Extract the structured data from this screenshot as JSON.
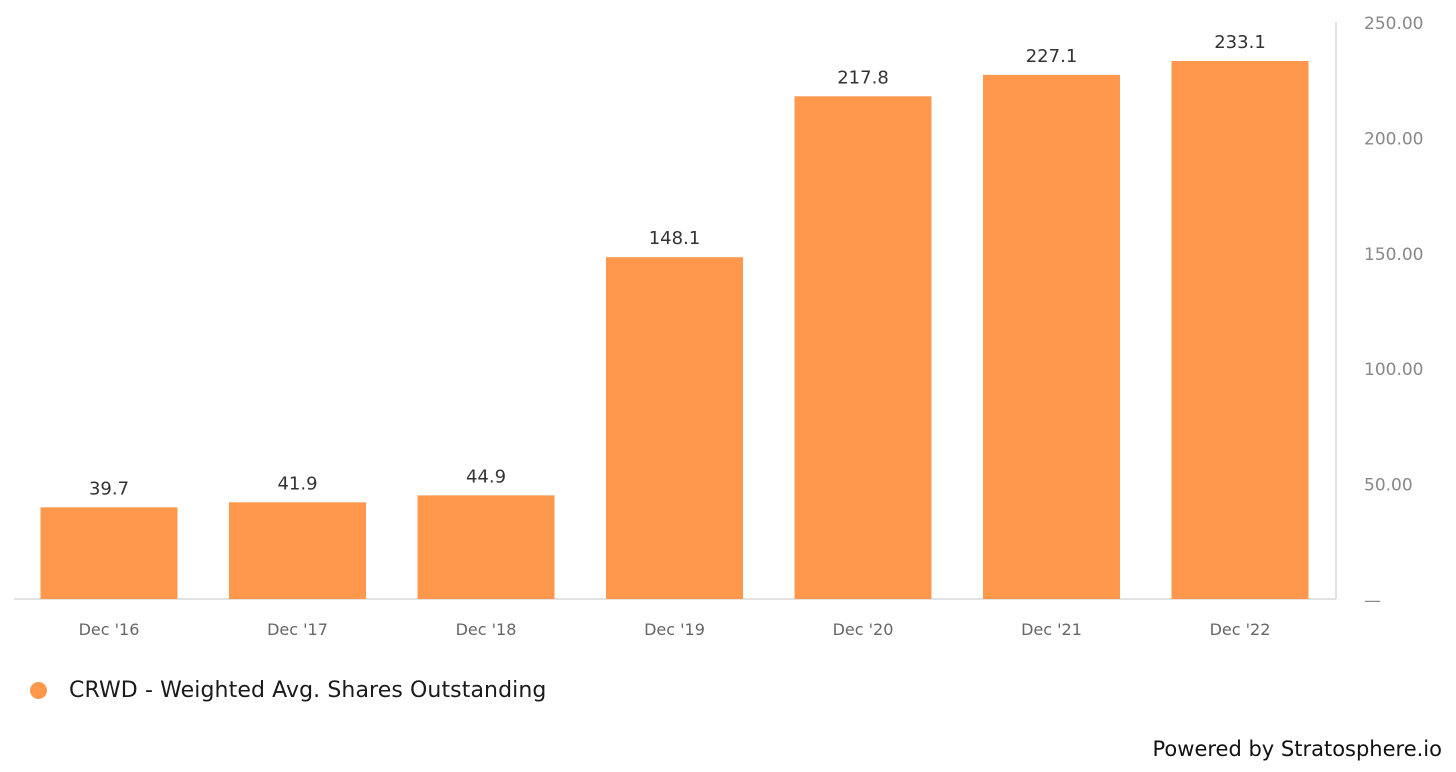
{
  "chart_data": {
    "type": "bar",
    "categories": [
      "Dec '16",
      "Dec '17",
      "Dec '18",
      "Dec '19",
      "Dec '20",
      "Dec '21",
      "Dec '22"
    ],
    "series": [
      {
        "name": "CRWD - Weighted Avg. Shares Outstanding",
        "values": [
          39.7,
          41.9,
          44.9,
          148.1,
          217.8,
          227.1,
          233.1
        ],
        "color": "#FF984D"
      }
    ],
    "data_labels": [
      "39.7",
      "41.9",
      "44.9",
      "148.1",
      "217.8",
      "227.1",
      "233.1"
    ],
    "ylim": [
      0,
      250
    ],
    "yticks": [
      0,
      50,
      100,
      150,
      200,
      250
    ],
    "ytick_labels": [
      "—",
      "50.00",
      "100.00",
      "150.00",
      "200.00",
      "250.00"
    ],
    "yaxis_position": "right",
    "grid": false,
    "legend_position": "bottom-left"
  },
  "legend": {
    "label": "CRWD - Weighted Avg. Shares Outstanding",
    "color": "#FF984D"
  },
  "footer": {
    "powered_by": "Powered by Stratosphere.io"
  }
}
